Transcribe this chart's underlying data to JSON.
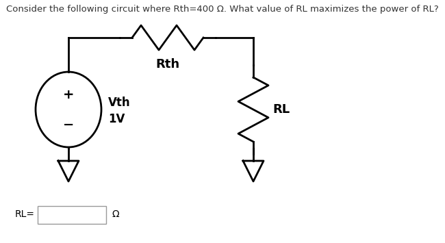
{
  "title": "Consider the following circuit where Rth=400 Ω. What value of RL maximizes the power of RL?",
  "title_fontsize": 9.5,
  "title_color": "#333333",
  "bg_color": "#ffffff",
  "vth_label_top": "Vth",
  "vth_label_bot": "1V",
  "rth_label": "Rth",
  "rl_label": "RL",
  "answer_label": "RL=",
  "omega_label": "Ω",
  "line_color": "#000000",
  "text_color": "#000000",
  "figsize": [
    6.5,
    3.55
  ],
  "dpi": 100
}
